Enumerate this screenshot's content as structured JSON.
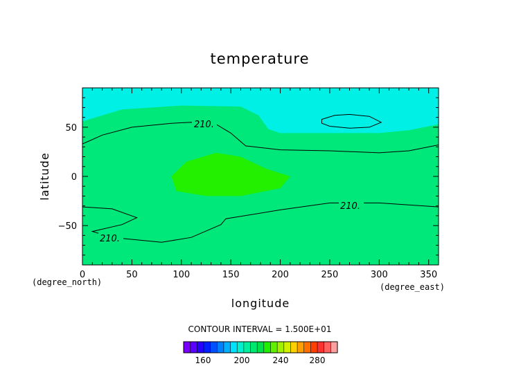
{
  "chart_data": {
    "type": "heatmap",
    "title": "temperature",
    "xlabel": "longitude",
    "ylabel": "latitude",
    "x_unit": "(degree_east)",
    "y_unit": "(degree_north)",
    "xlim": [
      0,
      360
    ],
    "ylim": [
      -90,
      90
    ],
    "x_ticks": [
      0,
      50,
      100,
      150,
      200,
      250,
      300,
      350
    ],
    "y_ticks": [
      -50,
      0,
      50
    ],
    "contour_interval_text": "CONTOUR INTERVAL = 1.500E+01",
    "contour_label": "210.",
    "regions": [
      {
        "id": "base",
        "value_range": [
          210,
          225
        ],
        "color": "#00e87a"
      },
      {
        "id": "north-cold",
        "value_range": [
          195,
          210
        ],
        "color": "#00f0e6"
      },
      {
        "id": "center-warm",
        "value_range": [
          225,
          240
        ],
        "color": "#22f000"
      }
    ],
    "contours": [
      {
        "id": "north",
        "level": 210,
        "points": [
          [
            0,
            33
          ],
          [
            20,
            42
          ],
          [
            50,
            50
          ],
          [
            90,
            54
          ],
          [
            110,
            55
          ],
          [
            135,
            53
          ],
          [
            150,
            44
          ],
          [
            165,
            31
          ],
          [
            200,
            27
          ],
          [
            250,
            26
          ],
          [
            300,
            24
          ],
          [
            330,
            26
          ],
          [
            360,
            32
          ]
        ]
      },
      {
        "id": "south",
        "level": 210,
        "points": [
          [
            0,
            -31
          ],
          [
            30,
            -33
          ],
          [
            55,
            -42
          ],
          [
            40,
            -49
          ],
          [
            10,
            -56
          ],
          [
            30,
            -62
          ],
          [
            80,
            -67
          ],
          [
            110,
            -62
          ],
          [
            140,
            -49
          ],
          [
            145,
            -43
          ],
          [
            200,
            -34
          ],
          [
            250,
            -27
          ],
          [
            300,
            -27
          ],
          [
            360,
            -31
          ]
        ]
      },
      {
        "id": "north-closed",
        "level": 195,
        "points": [
          [
            242,
            58
          ],
          [
            255,
            62
          ],
          [
            270,
            63
          ],
          [
            290,
            61
          ],
          [
            302,
            55
          ],
          [
            290,
            50
          ],
          [
            270,
            49
          ],
          [
            250,
            51
          ],
          [
            242,
            54
          ]
        ]
      }
    ],
    "colorbar": {
      "colors": [
        "#7a00ff",
        "#5a00ff",
        "#2800ff",
        "#0020ff",
        "#0050ff",
        "#0080ff",
        "#00b0ff",
        "#00e0ff",
        "#00f0d0",
        "#00f0a0",
        "#00e870",
        "#00e048",
        "#20f000",
        "#60f000",
        "#a0f000",
        "#d0f000",
        "#ffd000",
        "#ffa000",
        "#ff7000",
        "#ff4000",
        "#ff3030",
        "#ff6060",
        "#ffa0a0"
      ],
      "tick_labels": [
        "160",
        "200",
        "240",
        "280"
      ]
    }
  }
}
